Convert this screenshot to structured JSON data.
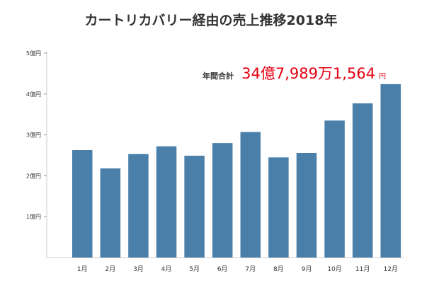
{
  "chart_data": {
    "type": "bar",
    "title": "カートリカバリー経由の売上推移2018年",
    "categories": [
      "1月",
      "2月",
      "3月",
      "4月",
      "5月",
      "6月",
      "7月",
      "8月",
      "9月",
      "10月",
      "11月",
      "12月"
    ],
    "values": [
      2.63,
      2.18,
      2.53,
      2.72,
      2.49,
      2.8,
      3.07,
      2.45,
      2.56,
      3.35,
      3.77,
      4.24
    ],
    "ylim": [
      0,
      5
    ],
    "yticks": [
      {
        "value": 1,
        "label": "1億円"
      },
      {
        "value": 2,
        "label": "2億円"
      },
      {
        "value": 3,
        "label": "3億円"
      },
      {
        "value": 4,
        "label": "4億円"
      },
      {
        "value": 5,
        "label": "5億円"
      }
    ],
    "bar_color": "#4a7fa9",
    "grid": false,
    "annotation": {
      "label": "年間合計",
      "value": "34億7,989万1,564",
      "unit": "円",
      "color": "#e60012"
    }
  }
}
